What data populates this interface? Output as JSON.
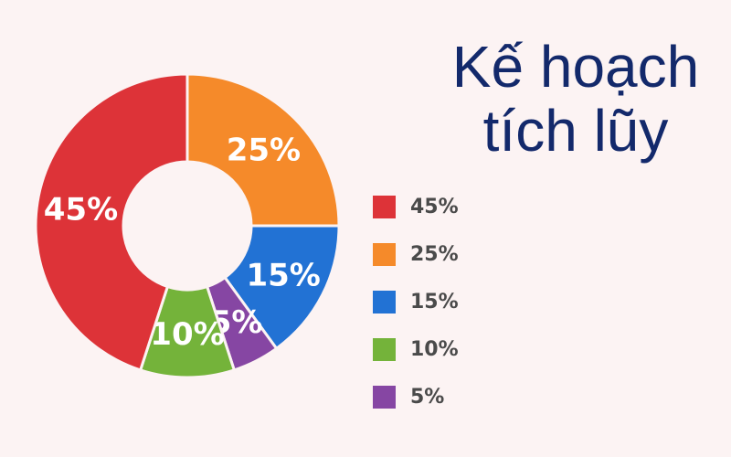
{
  "chart_data": {
    "type": "pie",
    "title": "Kế hoạch tích lũy",
    "title_lines": [
      "Kế hoạch",
      "tích lũy"
    ],
    "donut": true,
    "legend_position": "right",
    "slices": [
      {
        "label": "25%",
        "value": 25,
        "color": "#f58a2a"
      },
      {
        "label": "15%",
        "value": 15,
        "color": "#2272d4"
      },
      {
        "label": "5%",
        "value": 5,
        "color": "#8646a3"
      },
      {
        "label": "10%",
        "value": 10,
        "color": "#74b33a"
      },
      {
        "label": "45%",
        "value": 45,
        "color": "#dd3338"
      }
    ],
    "legend": [
      {
        "label": "45%",
        "color": "#dd3338"
      },
      {
        "label": "25%",
        "color": "#f58a2a"
      },
      {
        "label": "15%",
        "color": "#2272d4"
      },
      {
        "label": "10%",
        "color": "#74b33a"
      },
      {
        "label": "5%",
        "color": "#8646a3"
      }
    ]
  }
}
